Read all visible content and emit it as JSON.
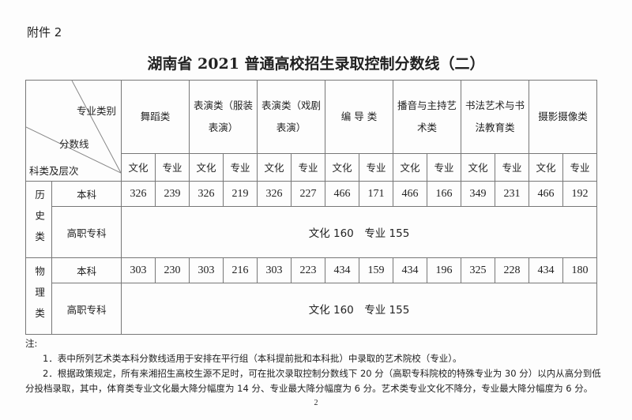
{
  "attachment": "附件 2",
  "title": "湖南省 2021 普通高校招生录取控制分数线（二）",
  "corner": {
    "major": "专业类别",
    "score": "分数线",
    "category": "科类及层次"
  },
  "majors": [
    "舞蹈类",
    "表演类（服装表演）",
    "表演类（戏剧表演）",
    "编 导 类",
    "播音与主持艺术类",
    "书法艺术与书法教育类",
    "摄影摄像类"
  ],
  "sub": {
    "culture": "文化",
    "major": "专业"
  },
  "groups": [
    {
      "name": "历史类",
      "undergrad": {
        "label": "本科",
        "scores": [
          "326",
          "239",
          "326",
          "219",
          "326",
          "227",
          "466",
          "171",
          "466",
          "166",
          "349",
          "231",
          "466",
          "192"
        ]
      },
      "vocational": {
        "label": "高职专科",
        "text": "文化 160　专业 155"
      }
    },
    {
      "name": "物理类",
      "undergrad": {
        "label": "本科",
        "scores": [
          "303",
          "230",
          "303",
          "216",
          "303",
          "223",
          "434",
          "159",
          "434",
          "196",
          "325",
          "228",
          "434",
          "180"
        ]
      },
      "vocational": {
        "label": "高职专科",
        "text": "文化 160　专业 155"
      }
    }
  ],
  "notes": {
    "heading": "注:",
    "items": [
      "1．表中所列艺术类本科分数线适用于安排在平行组（本科提前批和本科批）中录取的艺术院校（专业）。",
      "2．根据政策规定，所有来湘招生高校生源不足时，可在批次录取控制分数线下 20 分（高职专科院校的特殊专业为 30 分）以内从高分到低分投档录取，其中，体育类专业文化最大降分幅度为 14 分、专业最大降分幅度为 6 分。艺术类专业文化不降分，专业最大降分幅度为 6 分。"
    ]
  },
  "page_number": "2"
}
